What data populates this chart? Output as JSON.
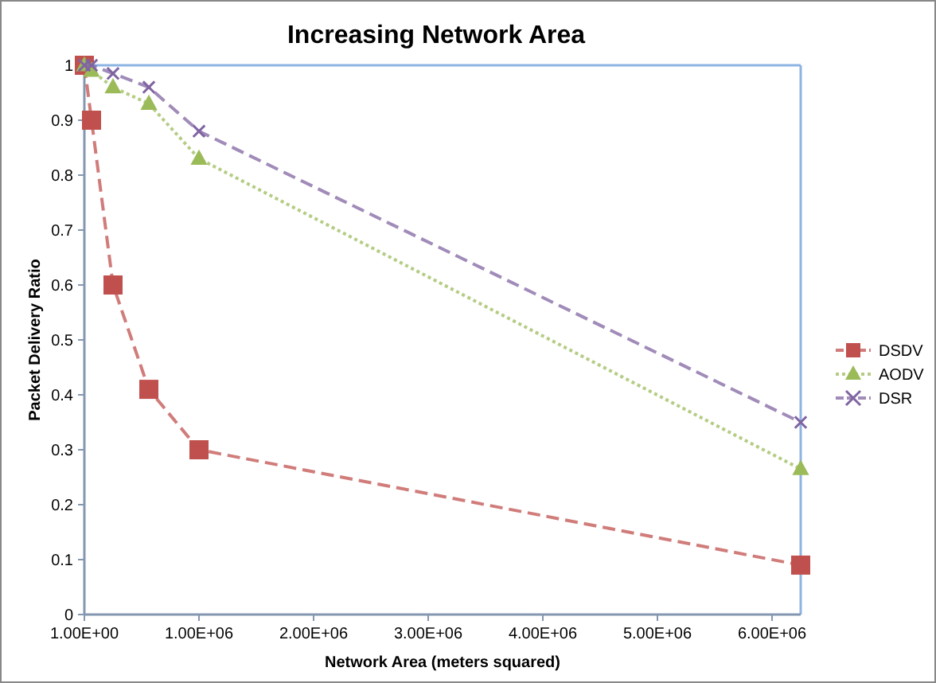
{
  "chart_data": {
    "type": "line",
    "title": "Increasing Network Area",
    "xlabel": "Network Area  (meters squared)",
    "ylabel": "Packet Delivery Ratio",
    "x": [
      1,
      62500,
      250000,
      562500,
      1000000,
      6250000
    ],
    "series": [
      {
        "name": "DSDV",
        "color": "#c0504d",
        "marker": "square",
        "line_style": "dashed",
        "values": [
          1,
          0.9,
          0.6,
          0.41,
          0.3,
          0.09
        ]
      },
      {
        "name": "AODV",
        "color": "#9bbb59",
        "marker": "triangle",
        "line_style": "dotted",
        "values": [
          1,
          0.99,
          0.96,
          0.93,
          0.83,
          0.265
        ]
      },
      {
        "name": "DSR",
        "color": "#8064a2",
        "marker": "cross",
        "line_style": "dashed",
        "values": [
          1,
          1,
          0.985,
          0.96,
          0.88,
          0.35
        ]
      }
    ],
    "xlim": [
      1,
      6250000
    ],
    "xticks": [
      {
        "value": 1,
        "label": "1.00E+00"
      },
      {
        "value": 1000000,
        "label": "1.00E+06"
      },
      {
        "value": 2000000,
        "label": "2.00E+06"
      },
      {
        "value": 3000000,
        "label": "3.00E+06"
      },
      {
        "value": 4000000,
        "label": "4.00E+06"
      },
      {
        "value": 5000000,
        "label": "5.00E+06"
      },
      {
        "value": 6000000,
        "label": "6.00E+06"
      }
    ],
    "ylim": [
      0,
      1
    ],
    "yticks": [
      0,
      0.1,
      0.2,
      0.3,
      0.4,
      0.5,
      0.6,
      0.7,
      0.8,
      0.9,
      1
    ],
    "grid": false,
    "legend": "right"
  }
}
